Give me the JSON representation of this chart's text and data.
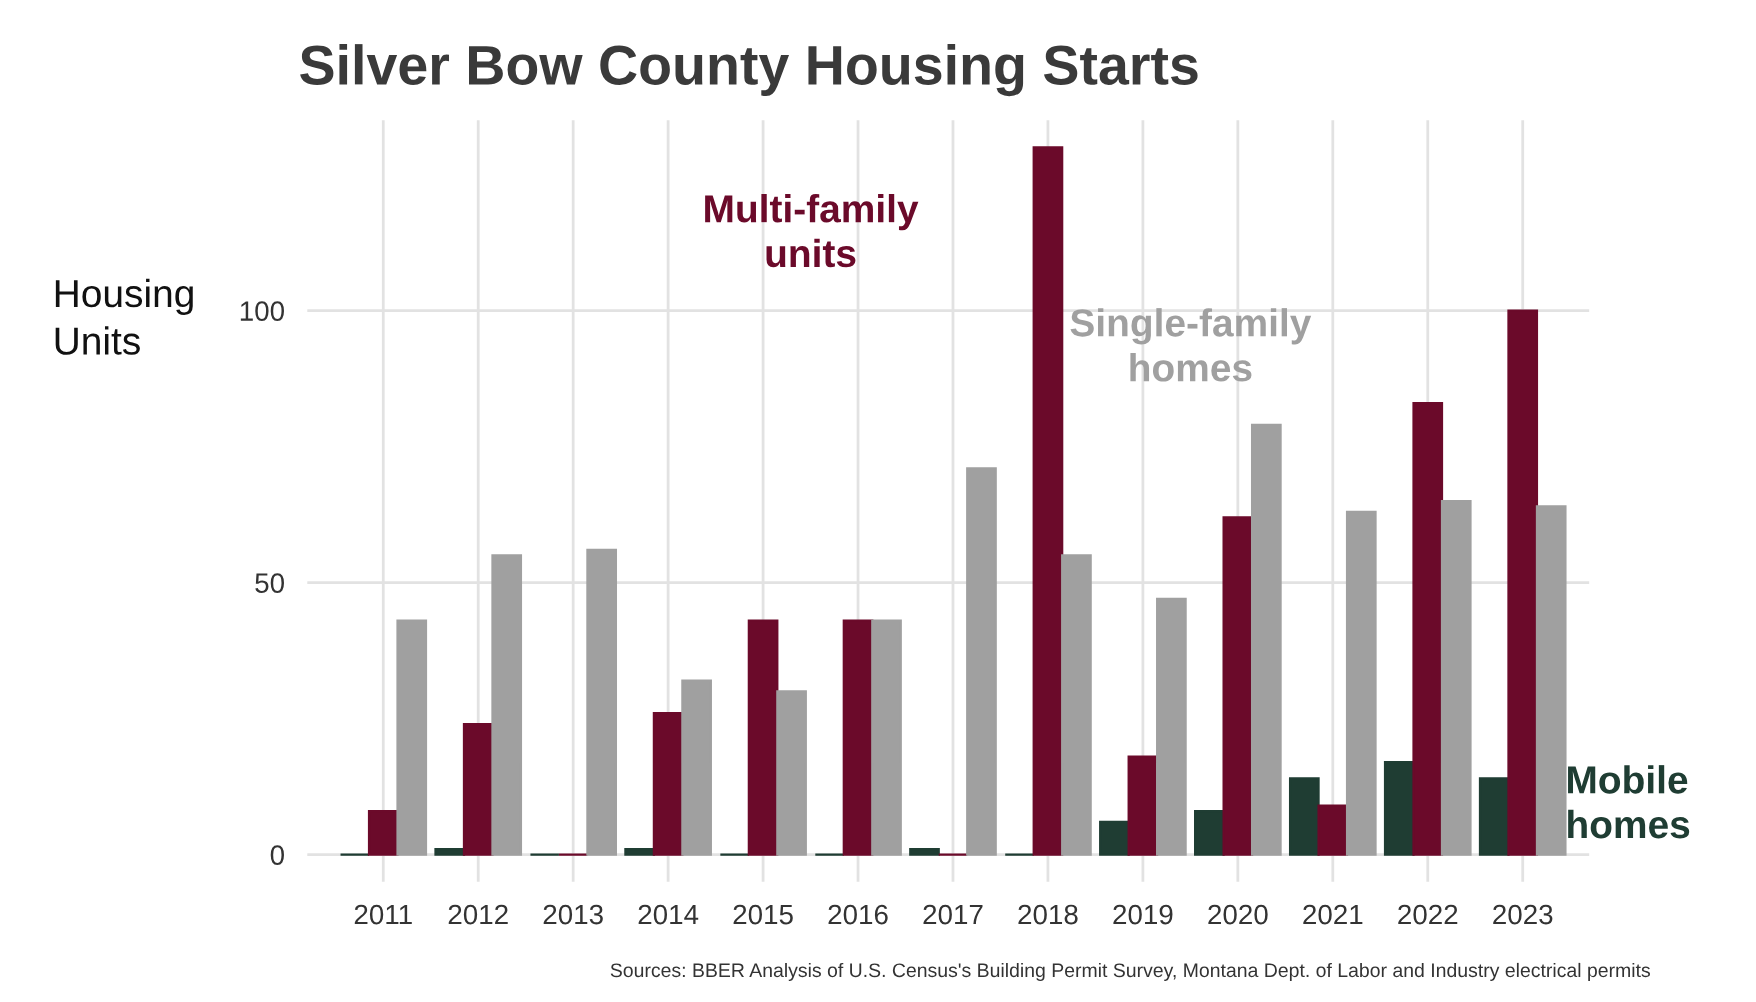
{
  "chart_data": {
    "type": "bar",
    "title": "Silver Bow County Housing Starts",
    "ylabel": "Housing\nUnits",
    "categories": [
      "2011",
      "2012",
      "2013",
      "2014",
      "2015",
      "2016",
      "2017",
      "2018",
      "2019",
      "2020",
      "2021",
      "2022",
      "2023"
    ],
    "series": [
      {
        "name": "Mobile\nhomes",
        "color": "#1f3d33",
        "values": [
          0,
          1,
          0,
          1,
          0,
          0,
          1,
          0,
          6,
          8,
          14,
          17,
          14
        ]
      },
      {
        "name": "Multi-family\nunits",
        "color": "#6b0a2a",
        "values": [
          8,
          24,
          0,
          26,
          43,
          43,
          0,
          130,
          18,
          62,
          9,
          83,
          100
        ]
      },
      {
        "name": "Single-family\nhomes",
        "color": "#a0a0a0",
        "values": [
          43,
          55,
          56,
          32,
          30,
          43,
          71,
          55,
          47,
          79,
          63,
          65,
          64
        ]
      }
    ],
    "ylim": [
      -5,
      135
    ],
    "yticks": [
      0,
      50,
      100
    ],
    "grid": true,
    "legend": false,
    "annotations": [
      "Sources: BBER Analysis of U.S. Census's Building Permit Survey, Montana Dept. of Labor and Industry electrical permits"
    ]
  }
}
